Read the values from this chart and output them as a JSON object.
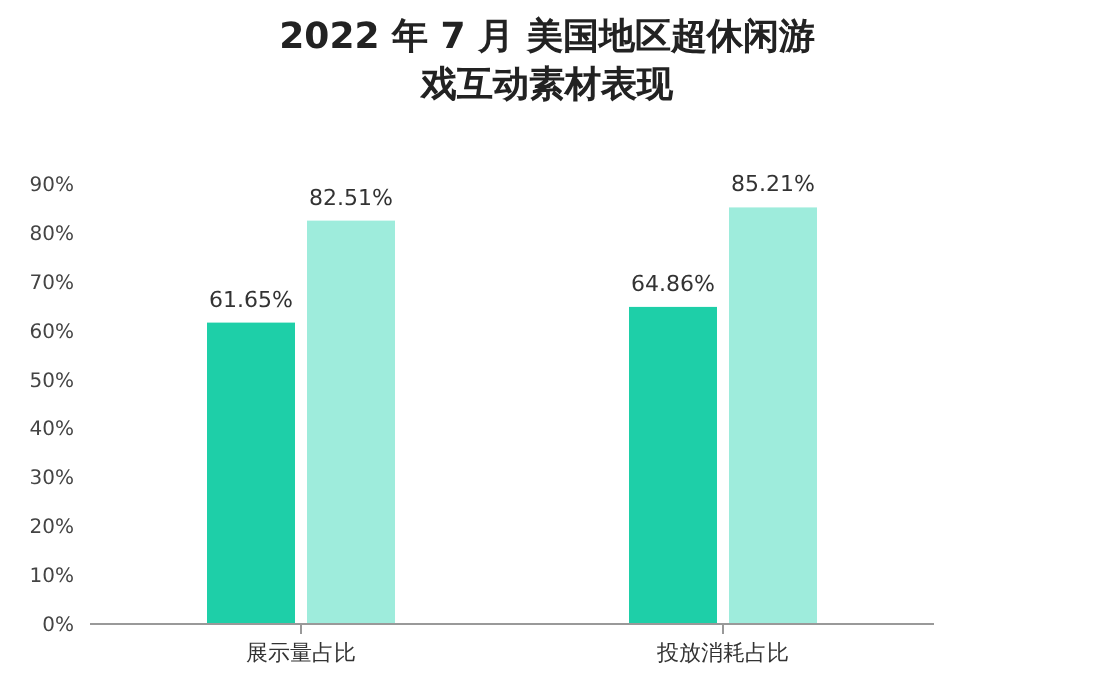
{
  "chart_data": {
    "type": "bar",
    "title": "2022 年 7 月 美国地区超休闲游戏互动素材表现",
    "categories": [
      "展示量占比",
      "投放消耗占比"
    ],
    "series": [
      {
        "color": "#1ecfa8",
        "values": [
          61.65,
          64.86
        ],
        "value_labels": [
          "61.65%",
          "64.86%"
        ]
      },
      {
        "color": "#9eecdc",
        "values": [
          82.51,
          85.21
        ],
        "value_labels": [
          "82.51%",
          "85.21%"
        ]
      }
    ],
    "ylim": [
      0,
      90
    ],
    "yticks": [
      {
        "value": 0,
        "label": "0%"
      },
      {
        "value": 10,
        "label": "10%"
      },
      {
        "value": 20,
        "label": "20%"
      },
      {
        "value": 30,
        "label": "30%"
      },
      {
        "value": 40,
        "label": "40%"
      },
      {
        "value": 50,
        "label": "50%"
      },
      {
        "value": 60,
        "label": "60%"
      },
      {
        "value": 70,
        "label": "70%"
      },
      {
        "value": 80,
        "label": "80%"
      },
      {
        "value": 90,
        "label": "90%"
      }
    ],
    "grid": false
  }
}
